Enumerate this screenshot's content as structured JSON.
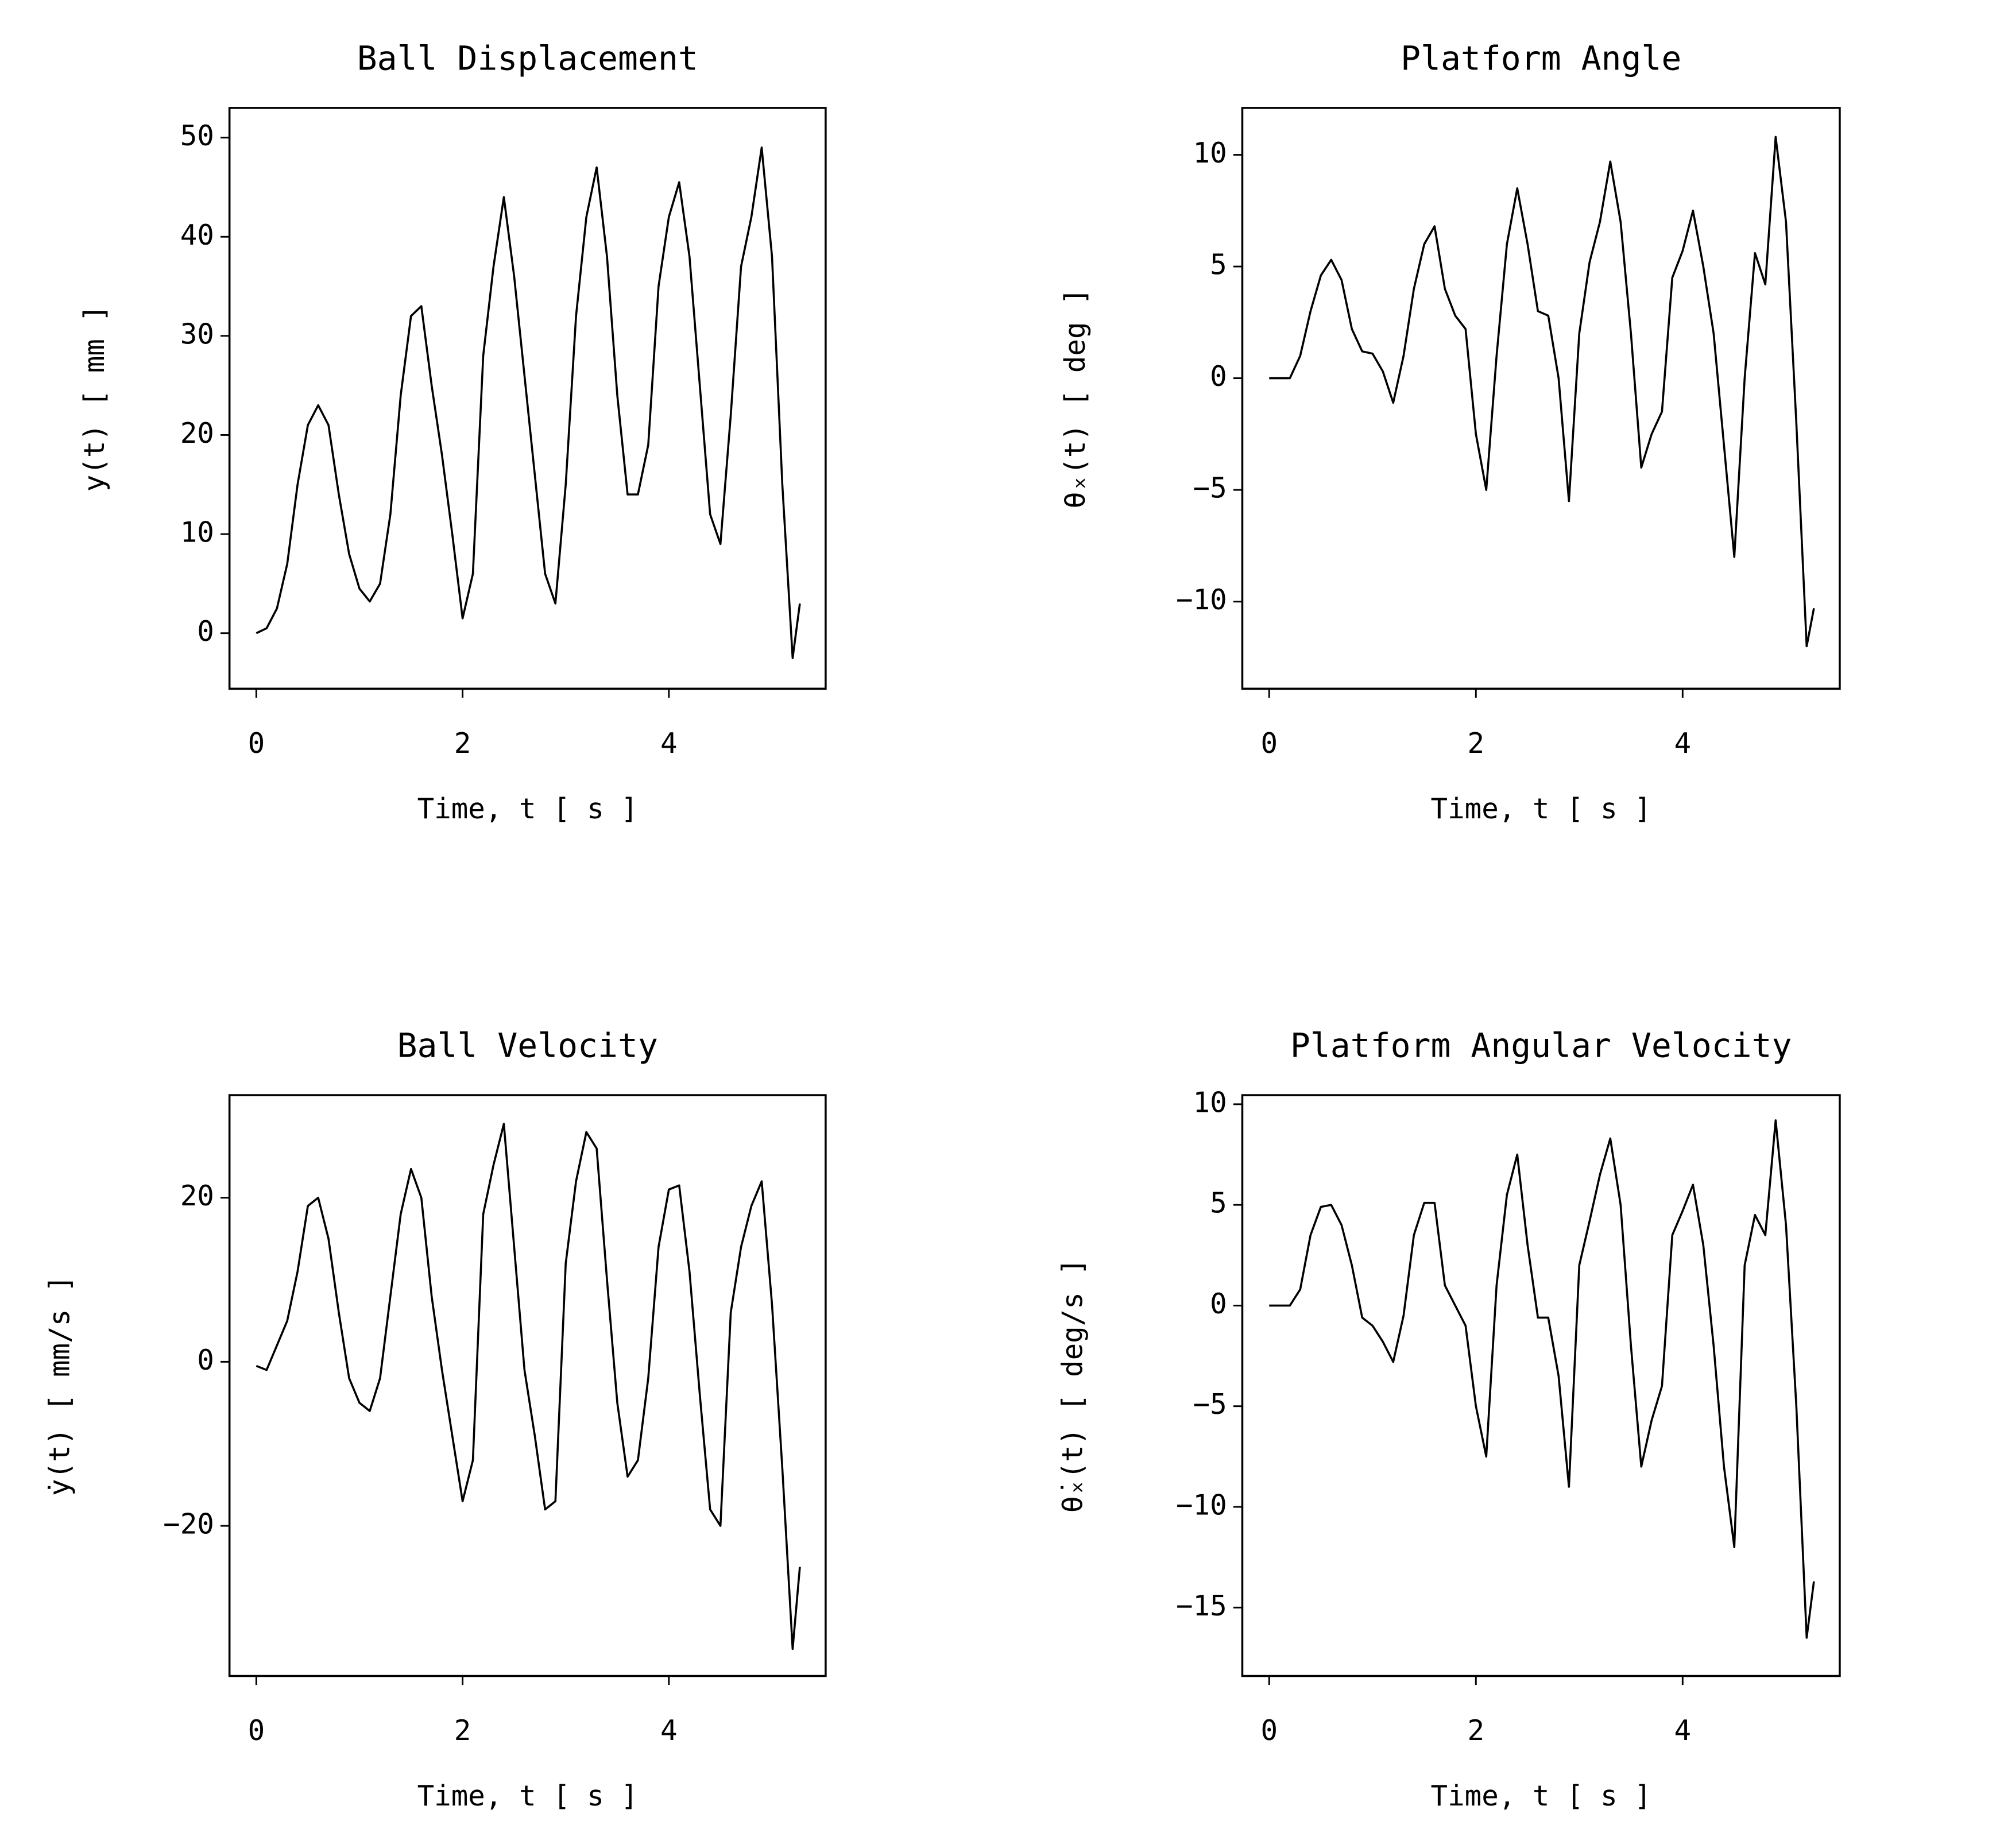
{
  "chart_data": [
    {
      "type": "line",
      "title": "Ball Displacement",
      "xlabel": "Time, t [ s ]",
      "ylabel": "y(t) [ mm ]",
      "color": "#000000",
      "x": [
        0,
        0.1,
        0.2,
        0.3,
        0.4,
        0.5,
        0.6,
        0.7,
        0.8,
        0.9,
        1.0,
        1.1,
        1.2,
        1.3,
        1.4,
        1.5,
        1.6,
        1.7,
        1.8,
        1.9,
        2.0,
        2.1,
        2.2,
        2.3,
        2.4,
        2.5,
        2.6,
        2.7,
        2.8,
        2.9,
        3.0,
        3.1,
        3.2,
        3.3,
        3.4,
        3.5,
        3.6,
        3.7,
        3.8,
        3.9,
        4.0,
        4.1,
        4.2,
        4.3,
        4.4,
        4.5,
        4.6,
        4.7,
        4.8,
        4.9,
        5.0,
        5.1,
        5.2,
        5.27
      ],
      "values": [
        0,
        0.5,
        2.5,
        7,
        15,
        21,
        23,
        21,
        14,
        8,
        4.5,
        3.2,
        5,
        12,
        24,
        32,
        33,
        25,
        18,
        10,
        1.5,
        6,
        28,
        37,
        44,
        36,
        26,
        16,
        6,
        3,
        15,
        32,
        42,
        47,
        38,
        24,
        14,
        14,
        19,
        35,
        42,
        45.5,
        38,
        25,
        12,
        9,
        22,
        37,
        42,
        49,
        38,
        15,
        -2.5,
        3
      ],
      "xlim": [
        -0.26,
        5.52
      ],
      "ylim": [
        -5.6,
        53
      ],
      "xticks": [
        0,
        2,
        4
      ],
      "yticks": [
        0,
        10,
        20,
        30,
        40,
        50
      ]
    },
    {
      "type": "line",
      "title": "Platform Angle",
      "xlabel": "Time, t [ s ]",
      "ylabel": "θₓ(t) [ deg ]",
      "color": "#000000",
      "x": [
        0,
        0.1,
        0.2,
        0.3,
        0.4,
        0.5,
        0.6,
        0.7,
        0.8,
        0.9,
        1.0,
        1.1,
        1.2,
        1.3,
        1.4,
        1.5,
        1.6,
        1.7,
        1.8,
        1.9,
        2.0,
        2.1,
        2.2,
        2.3,
        2.4,
        2.5,
        2.6,
        2.7,
        2.8,
        2.9,
        3.0,
        3.1,
        3.2,
        3.3,
        3.4,
        3.5,
        3.6,
        3.7,
        3.8,
        3.9,
        4.0,
        4.1,
        4.2,
        4.3,
        4.4,
        4.5,
        4.6,
        4.7,
        4.8,
        4.9,
        5.0,
        5.1,
        5.2,
        5.27
      ],
      "values": [
        0,
        0,
        0,
        1,
        3,
        4.6,
        5.3,
        4.4,
        2.2,
        1.2,
        1.1,
        0.3,
        -1.1,
        1,
        4,
        6,
        6.8,
        4,
        2.8,
        2.2,
        -2.5,
        -5,
        1,
        6,
        8.5,
        6,
        3,
        2.8,
        0,
        -5.5,
        2,
        5.2,
        7,
        9.7,
        7,
        2,
        -4,
        -2.5,
        -1.5,
        4.5,
        5.7,
        7.5,
        5,
        2,
        -3,
        -8,
        0,
        5.6,
        4.2,
        10.8,
        7,
        -2,
        -12,
        -10.3
      ],
      "xlim": [
        -0.26,
        5.52
      ],
      "ylim": [
        -13.9,
        12.1
      ],
      "xticks": [
        0,
        2,
        4
      ],
      "yticks": [
        {
          "value": -10,
          "label": "−10"
        },
        {
          "value": -5,
          "label": "−5"
        },
        0,
        5,
        10
      ]
    },
    {
      "type": "line",
      "title": "Ball Velocity",
      "xlabel": "Time, t [ s ]",
      "ylabel": "ẏ(t) [ mm/s ]",
      "color": "#000000",
      "x": [
        0,
        0.1,
        0.2,
        0.3,
        0.4,
        0.5,
        0.6,
        0.7,
        0.8,
        0.9,
        1.0,
        1.1,
        1.2,
        1.3,
        1.4,
        1.5,
        1.6,
        1.7,
        1.8,
        1.9,
        2.0,
        2.1,
        2.2,
        2.3,
        2.4,
        2.5,
        2.6,
        2.7,
        2.8,
        2.9,
        3.0,
        3.1,
        3.2,
        3.3,
        3.4,
        3.5,
        3.6,
        3.7,
        3.8,
        3.9,
        4.0,
        4.1,
        4.2,
        4.3,
        4.4,
        4.5,
        4.6,
        4.7,
        4.8,
        4.9,
        5.0,
        5.1,
        5.2,
        5.27
      ],
      "values": [
        -0.5,
        -1,
        2,
        5,
        11,
        19,
        20,
        15,
        6,
        -2,
        -5,
        -6,
        -2,
        8,
        18,
        23.5,
        20,
        8,
        -1,
        -9,
        -17,
        -12,
        18,
        24,
        29,
        14,
        -1,
        -9,
        -18,
        -17,
        12,
        22,
        28,
        26,
        10,
        -5,
        -14,
        -12,
        -2,
        14,
        21,
        21.5,
        11,
        -4,
        -18,
        -20,
        6,
        14,
        19,
        22,
        7,
        -13,
        -35,
        -25
      ],
      "xlim": [
        -0.26,
        5.52
      ],
      "ylim": [
        -38.3,
        32.5
      ],
      "xticks": [
        0,
        2,
        4
      ],
      "yticks": [
        {
          "value": -20,
          "label": "−20"
        },
        0,
        20
      ]
    },
    {
      "type": "line",
      "title": "Platform Angular Velocity",
      "xlabel": "Time, t [ s ]",
      "ylabel": "θ̇ₓ(t) [ deg/s ]",
      "color": "#000000",
      "x": [
        0,
        0.1,
        0.2,
        0.3,
        0.4,
        0.5,
        0.6,
        0.7,
        0.8,
        0.9,
        1.0,
        1.1,
        1.2,
        1.3,
        1.4,
        1.5,
        1.6,
        1.7,
        1.8,
        1.9,
        2.0,
        2.1,
        2.2,
        2.3,
        2.4,
        2.5,
        2.6,
        2.7,
        2.8,
        2.9,
        3.0,
        3.1,
        3.2,
        3.3,
        3.4,
        3.5,
        3.6,
        3.7,
        3.8,
        3.9,
        4.0,
        4.1,
        4.2,
        4.3,
        4.4,
        4.5,
        4.6,
        4.7,
        4.8,
        4.9,
        5.0,
        5.1,
        5.2,
        5.27
      ],
      "values": [
        0,
        0,
        0,
        0.8,
        3.5,
        4.9,
        5,
        4,
        2,
        -0.6,
        -1,
        -1.8,
        -2.8,
        -0.5,
        3.5,
        5.1,
        5.1,
        1,
        0,
        -1,
        -5,
        -7.5,
        1,
        5.5,
        7.5,
        3,
        -0.6,
        -0.6,
        -3.5,
        -9,
        2,
        4.2,
        6.5,
        8.3,
        5,
        -2,
        -8,
        -5.7,
        -4,
        3.5,
        4.7,
        6,
        3,
        -2,
        -8,
        -12,
        2,
        4.5,
        3.5,
        9.2,
        4,
        -5,
        -16.5,
        -13.7
      ],
      "xlim": [
        -0.26,
        5.52
      ],
      "ylim": [
        -18.4,
        10.45
      ],
      "xticks": [
        0,
        2,
        4
      ],
      "yticks": [
        {
          "value": -15,
          "label": "−15"
        },
        {
          "value": -10,
          "label": "−10"
        },
        {
          "value": -5,
          "label": "−5"
        },
        0,
        5,
        10
      ]
    }
  ]
}
